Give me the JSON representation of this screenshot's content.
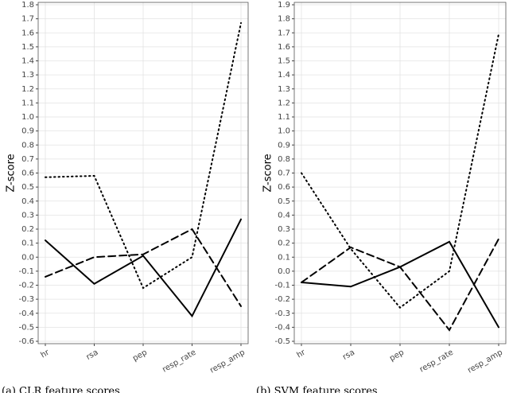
{
  "charts": [
    {
      "type": "line",
      "y_label": "Z-score",
      "categories": [
        "hr",
        "rsa",
        "pep",
        "resp_rate",
        "resp_amp"
      ],
      "ylim": [
        -0.6,
        1.8
      ],
      "yticks": [
        -0.6,
        -0.5,
        -0.4,
        -0.3,
        -0.2,
        -0.1,
        {
          "value": 0,
          "label": "0.0"
        },
        0.1,
        0.2,
        0.3,
        0.4,
        0.5,
        0.6,
        0.7,
        0.8,
        0.9,
        {
          "value": 1,
          "label": "1.0"
        },
        1.1,
        1.2,
        1.3,
        1.4,
        1.5,
        1.6,
        1.7,
        1.8
      ],
      "grid": true,
      "series": [
        {
          "color": "#000000",
          "dash": "solid",
          "values": [
            0.12,
            -0.19,
            0.01,
            -0.42,
            0.27
          ]
        },
        {
          "color": "#000000",
          "dash": "dashed",
          "values": [
            -0.14,
            0.0,
            0.02,
            0.2,
            -0.35
          ]
        },
        {
          "color": "#000000",
          "dash": "dotted",
          "values": [
            0.57,
            0.58,
            -0.22,
            0.0,
            1.67
          ]
        }
      ],
      "caption": "(a) CLR feature scores"
    },
    {
      "type": "line",
      "y_label": "Z-score",
      "categories": [
        "hr",
        "rsa",
        "pep",
        "resp_rate",
        "resp_amp"
      ],
      "ylim": [
        -0.5,
        1.9
      ],
      "yticks": [
        -0.5,
        -0.4,
        -0.3,
        -0.2,
        -0.1,
        {
          "value": 0,
          "label": "0.0"
        },
        0.1,
        0.2,
        0.3,
        0.4,
        0.5,
        0.6,
        0.7,
        0.8,
        0.9,
        {
          "value": 1,
          "label": "1.0"
        },
        1.1,
        1.2,
        1.3,
        1.4,
        1.5,
        1.6,
        1.7,
        1.8,
        1.9
      ],
      "grid": true,
      "series": [
        {
          "color": "#000000",
          "dash": "solid",
          "values": [
            -0.08,
            -0.11,
            0.03,
            0.21,
            -0.4
          ]
        },
        {
          "color": "#000000",
          "dash": "dashed",
          "values": [
            -0.08,
            0.17,
            0.03,
            -0.42,
            0.23
          ]
        },
        {
          "color": "#000000",
          "dash": "dotted",
          "values": [
            0.7,
            0.16,
            -0.26,
            0.0,
            1.69
          ]
        }
      ],
      "caption": "(b) SVM feature scores"
    }
  ]
}
